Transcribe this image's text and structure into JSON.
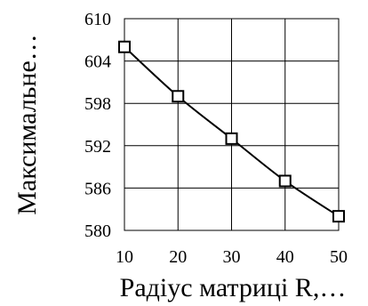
{
  "chart_data": {
    "type": "line",
    "title": "",
    "xlabel": "Радіус матриці R,…",
    "ylabel": "Максимальне…",
    "x": [
      10,
      20,
      30,
      40,
      50
    ],
    "series": [
      {
        "values": [
          606,
          599,
          593,
          587,
          582
        ],
        "marker": "square",
        "color": "#000000"
      }
    ],
    "xlim": [
      10,
      50
    ],
    "ylim": [
      580,
      610
    ],
    "xticks": [
      10,
      20,
      30,
      40,
      50
    ],
    "yticks": [
      580,
      586,
      592,
      598,
      604,
      610
    ],
    "grid": true,
    "legend": "none"
  }
}
